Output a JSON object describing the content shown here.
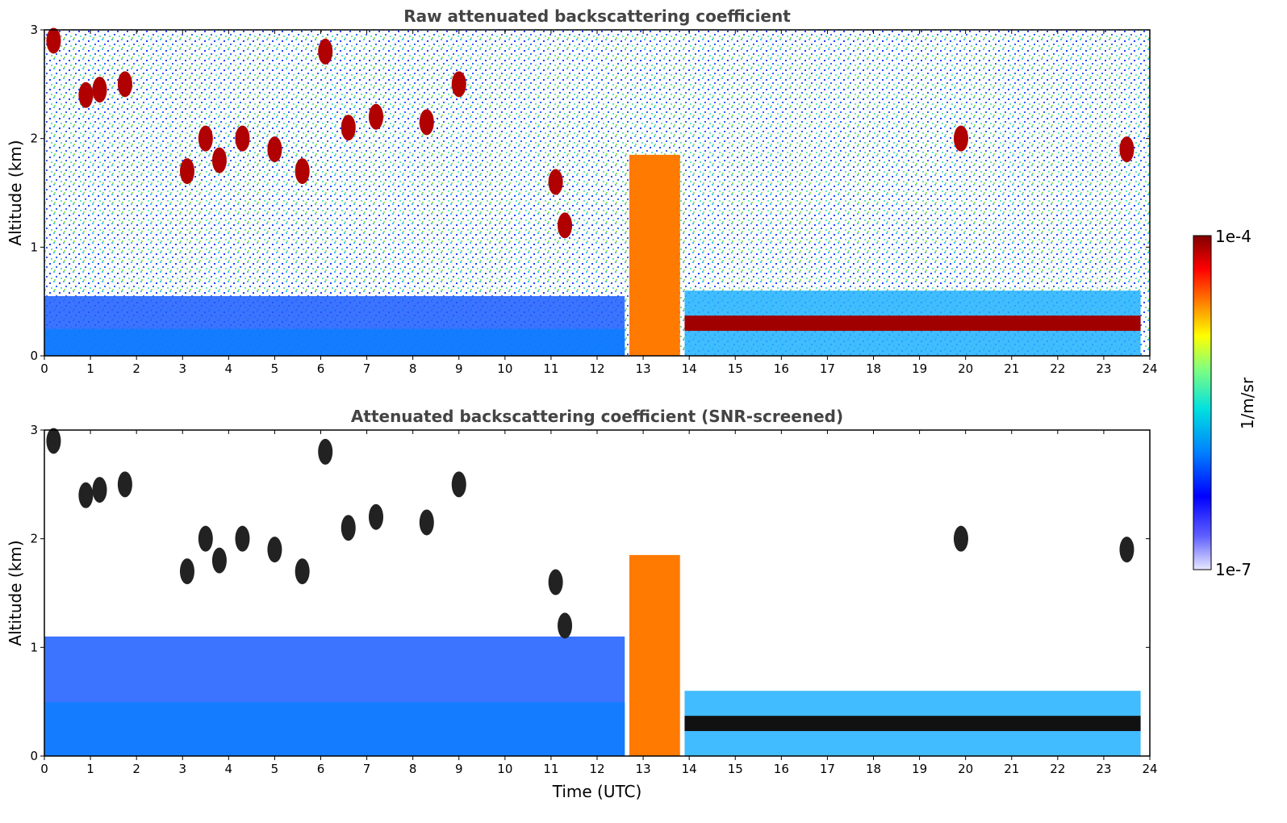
{
  "chart_data": [
    {
      "type": "heatmap",
      "title": "Raw attenuated backscattering coefficient",
      "xlabel": "",
      "ylabel": "Altitude (km)",
      "xlim": [
        0,
        24
      ],
      "ylim": [
        0,
        3
      ],
      "x_ticks": [
        "0",
        "1",
        "2",
        "3",
        "4",
        "5",
        "6",
        "7",
        "8",
        "9",
        "10",
        "11",
        "12",
        "13",
        "14",
        "15",
        "16",
        "17",
        "18",
        "19",
        "20",
        "21",
        "22",
        "23",
        "24"
      ],
      "y_ticks": [
        "0",
        "1",
        "2",
        "3"
      ],
      "noise_top": true,
      "features": [
        {
          "kind": "boundary_layer",
          "x_start": 0,
          "x_end": 12.6,
          "top_km": 0.55
        },
        {
          "kind": "fog_column",
          "x_start": 12.7,
          "x_end": 13.8,
          "top_km": 1.85
        },
        {
          "kind": "low_cloud_layer",
          "x_start": 13.9,
          "x_end": 23.8,
          "height_km": 0.3
        },
        {
          "kind": "elevated_clouds",
          "points": [
            [
              0.2,
              2.9
            ],
            [
              0.9,
              2.4
            ],
            [
              1.2,
              2.45
            ],
            [
              1.75,
              2.5
            ],
            [
              3.1,
              1.7
            ],
            [
              3.5,
              2.0
            ],
            [
              3.8,
              1.8
            ],
            [
              4.3,
              2.0
            ],
            [
              5.0,
              1.9
            ],
            [
              5.6,
              1.7
            ],
            [
              6.1,
              2.8
            ],
            [
              6.6,
              2.1
            ],
            [
              7.2,
              2.2
            ],
            [
              8.3,
              2.15
            ],
            [
              9.0,
              2.5
            ],
            [
              11.1,
              1.6
            ],
            [
              11.3,
              1.2
            ],
            [
              19.9,
              2.0
            ],
            [
              23.5,
              1.9
            ]
          ]
        }
      ]
    },
    {
      "type": "heatmap",
      "title": "Attenuated backscattering coefficient (SNR-screened)",
      "xlabel": "Time (UTC)",
      "ylabel": "Altitude (km)",
      "xlim": [
        0,
        24
      ],
      "ylim": [
        0,
        3
      ],
      "x_ticks": [
        "0",
        "1",
        "2",
        "3",
        "4",
        "5",
        "6",
        "7",
        "8",
        "9",
        "10",
        "11",
        "12",
        "13",
        "14",
        "15",
        "16",
        "17",
        "18",
        "19",
        "20",
        "21",
        "22",
        "23",
        "24"
      ],
      "y_ticks": [
        "0",
        "1",
        "2",
        "3"
      ],
      "noise_top": false,
      "features": [
        {
          "kind": "boundary_layer",
          "x_start": 0,
          "x_end": 12.6,
          "top_km": 1.1
        },
        {
          "kind": "fog_column",
          "x_start": 12.7,
          "x_end": 13.8,
          "top_km": 1.85
        },
        {
          "kind": "low_cloud_layer",
          "x_start": 13.9,
          "x_end": 23.8,
          "height_km": 0.3
        },
        {
          "kind": "elevated_clouds",
          "points": [
            [
              0.2,
              2.9
            ],
            [
              0.9,
              2.4
            ],
            [
              1.2,
              2.45
            ],
            [
              1.75,
              2.5
            ],
            [
              3.1,
              1.7
            ],
            [
              3.5,
              2.0
            ],
            [
              3.8,
              1.8
            ],
            [
              4.3,
              2.0
            ],
            [
              5.0,
              1.9
            ],
            [
              5.6,
              1.7
            ],
            [
              6.1,
              2.8
            ],
            [
              6.6,
              2.1
            ],
            [
              7.2,
              2.2
            ],
            [
              8.3,
              2.15
            ],
            [
              9.0,
              2.5
            ],
            [
              11.1,
              1.6
            ],
            [
              11.3,
              1.2
            ],
            [
              19.9,
              2.0
            ],
            [
              23.5,
              1.9
            ]
          ]
        }
      ]
    }
  ],
  "colorbar": {
    "label": "1/m/sr",
    "max_label": "1e-4",
    "min_label": "1e-7",
    "colors": [
      "#e8e8ff",
      "#0000ff",
      "#0080ff",
      "#00e0e0",
      "#80ff80",
      "#ffff00",
      "#ff8000",
      "#ff0000",
      "#800000"
    ]
  }
}
